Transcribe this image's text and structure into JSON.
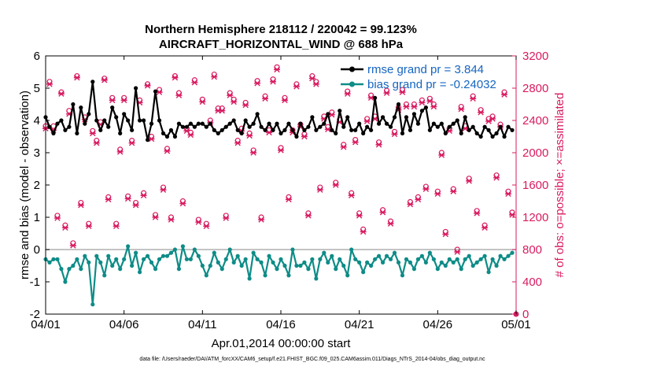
{
  "chart_data": {
    "type": "line",
    "title": "Northern Hemisphere 218112 / 220042 = 99.123%",
    "subtitle": "AIRCRAFT_HORIZONTAL_WIND @ 688 hPa",
    "xlabel": "Apr.01,2014 00:00:00 start",
    "ylabel": "rmse and bias (model - observation)",
    "y2label": "# of obs: o=possible; ×=assimilated",
    "xlim": [
      0,
      30
    ],
    "ylim": [
      -2,
      6
    ],
    "y2lim": [
      0,
      3200
    ],
    "x_ticks": [
      0,
      5,
      10,
      15,
      20,
      25,
      30
    ],
    "x_tick_labels": [
      "04/01",
      "04/06",
      "04/11",
      "04/16",
      "04/21",
      "04/26",
      "05/01"
    ],
    "y_ticks": [
      "-2",
      "-1",
      "0",
      "1",
      "2",
      "3",
      "4",
      "5",
      "6"
    ],
    "y2_ticks": [
      "0",
      "400",
      "800",
      "1200",
      "1600",
      "2000",
      "2400",
      "2800",
      "3200"
    ],
    "legend_position": "top-right",
    "legend": [
      "rmse grand pr = 3.844",
      "bias grand pr = -0.24032"
    ],
    "x": [
      0.0,
      0.25,
      0.5,
      0.75,
      1.0,
      1.25,
      1.5,
      1.75,
      2.0,
      2.25,
      2.5,
      2.75,
      3.0,
      3.25,
      3.5,
      3.75,
      4.0,
      4.25,
      4.5,
      4.75,
      5.0,
      5.25,
      5.5,
      5.75,
      6.0,
      6.25,
      6.5,
      6.75,
      7.0,
      7.25,
      7.5,
      7.75,
      8.0,
      8.25,
      8.5,
      8.75,
      9.0,
      9.25,
      9.5,
      9.75,
      10.0,
      10.25,
      10.5,
      10.75,
      11.0,
      11.25,
      11.5,
      11.75,
      12.0,
      12.25,
      12.5,
      12.75,
      13.0,
      13.25,
      13.5,
      13.75,
      14.0,
      14.25,
      14.5,
      14.75,
      15.0,
      15.25,
      15.5,
      15.75,
      16.0,
      16.25,
      16.5,
      16.75,
      17.0,
      17.25,
      17.5,
      17.75,
      18.0,
      18.25,
      18.5,
      18.75,
      19.0,
      19.25,
      19.5,
      19.75,
      20.0,
      20.25,
      20.5,
      20.75,
      21.0,
      21.25,
      21.5,
      21.75,
      22.0,
      22.25,
      22.5,
      22.75,
      23.0,
      23.25,
      23.5,
      23.75,
      24.0,
      24.25,
      24.5,
      24.75,
      25.0,
      25.25,
      25.5,
      25.75,
      26.0,
      26.25,
      26.5,
      26.75,
      27.0,
      27.25,
      27.5,
      27.75,
      28.0,
      28.25,
      28.5,
      28.75,
      29.0,
      29.25,
      29.5,
      29.75
    ],
    "series": [
      {
        "name": "rmse",
        "color": "#000000",
        "values": [
          4.1,
          3.8,
          3.6,
          3.9,
          4.0,
          3.7,
          3.8,
          4.5,
          3.6,
          4.4,
          3.9,
          4.2,
          5.2,
          4.0,
          3.7,
          4.0,
          3.8,
          4.4,
          4.1,
          3.6,
          4.2,
          4.0,
          3.7,
          5.0,
          4.0,
          4.0,
          3.4,
          3.9,
          4.9,
          4.0,
          3.6,
          3.5,
          3.7,
          3.5,
          3.9,
          3.8,
          3.8,
          3.9,
          3.8,
          3.9,
          3.9,
          3.8,
          3.9,
          3.7,
          3.6,
          3.7,
          3.8,
          3.9,
          4.0,
          3.7,
          3.6,
          4.0,
          3.8,
          3.9,
          4.2,
          3.8,
          3.7,
          3.9,
          3.7,
          3.9,
          3.6,
          3.7,
          3.9,
          3.7,
          3.5,
          3.9,
          3.7,
          3.8,
          4.1,
          3.7,
          3.8,
          3.9,
          4.2,
          3.7,
          3.6,
          4.3,
          3.8,
          4.1,
          3.7,
          3.7,
          3.9,
          3.6,
          3.8,
          3.7,
          4.7,
          3.9,
          4.1,
          3.9,
          3.8,
          4.1,
          4.5,
          3.6,
          4.1,
          3.7,
          4.2,
          3.9,
          4.3,
          4.4,
          3.7,
          3.9,
          3.8,
          3.9,
          3.6,
          3.8,
          3.9,
          4.0,
          3.6,
          4.1,
          3.7,
          3.8,
          3.6,
          3.5,
          3.8,
          3.7,
          3.5,
          3.6,
          3.8,
          3.5,
          3.8,
          3.7
        ],
        "legend": "rmse grand pr = 3.844"
      },
      {
        "name": "bias",
        "color": "#0e8c87",
        "values": [
          -0.3,
          -0.4,
          -0.3,
          -0.3,
          -0.6,
          -1.0,
          -0.6,
          -0.5,
          -0.3,
          -0.6,
          -0.2,
          -0.4,
          -1.7,
          -0.2,
          -0.4,
          -0.8,
          -0.2,
          -0.5,
          -0.3,
          -0.6,
          -0.3,
          0.1,
          -0.5,
          -0.1,
          -0.7,
          -0.3,
          -0.2,
          -0.4,
          -0.6,
          -0.3,
          -0.2,
          -0.2,
          -0.1,
          0.0,
          -0.6,
          0.1,
          -0.3,
          -0.3,
          0.0,
          -0.2,
          -0.5,
          -0.8,
          -0.5,
          -0.1,
          -0.4,
          -0.6,
          -0.3,
          0.0,
          -0.4,
          -0.2,
          -0.5,
          -0.3,
          -0.9,
          -0.1,
          -0.3,
          -0.4,
          -0.8,
          -0.2,
          -0.4,
          -0.6,
          -0.3,
          -0.5,
          -0.8,
          0.0,
          -0.5,
          -0.5,
          -0.4,
          -0.6,
          -0.3,
          -0.9,
          -0.3,
          -0.1,
          -0.4,
          -0.2,
          -0.6,
          -0.3,
          -0.5,
          -0.8,
          0.0,
          -0.3,
          -0.4,
          -0.7,
          -0.4,
          -0.5,
          -0.3,
          -0.2,
          -0.4,
          -0.2,
          -0.3,
          -0.1,
          -0.4,
          -0.8,
          -0.3,
          -0.4,
          -0.6,
          -0.3,
          -0.2,
          -0.4,
          -0.1,
          -0.3,
          -0.6,
          -0.4,
          -0.5,
          -0.3,
          -0.4,
          -0.3,
          -0.6,
          -0.3,
          -0.2,
          -0.5,
          -0.4,
          -0.3,
          -0.2,
          -0.7,
          -0.3,
          -0.5,
          -0.2,
          -0.3,
          -0.2,
          -0.1
        ],
        "legend": "bias grand pr = -0.24032"
      },
      {
        "name": "obs possible",
        "axis": "right",
        "marker": "o",
        "color": "#d81b60",
        "values": [
          2330,
          2880,
          2330,
          1220,
          2750,
          1100,
          2520,
          880,
          2950,
          1380,
          2440,
          1120,
          2270,
          2150,
          2380,
          2920,
          1450,
          2680,
          1120,
          2040,
          2680,
          1460,
          2150,
          1380,
          2650,
          1500,
          2850,
          2200,
          1230,
          2780,
          1570,
          2050,
          1200,
          2950,
          2740,
          1400,
          2300,
          2250,
          2900,
          1170,
          2660,
          1120,
          2400,
          2970,
          2550,
          2550,
          1220,
          2740,
          2660,
          2150,
          2300,
          2620,
          2240,
          2030,
          2890,
          1200,
          2700,
          2280,
          2910,
          3060,
          2060,
          2680,
          1450,
          2280,
          2850,
          2350,
          2230,
          1250,
          2950,
          2880,
          1570,
          2450,
          2320,
          2500,
          1630,
          2410,
          2100,
          2760,
          1500,
          2160,
          1250,
          1050,
          2420,
          2710,
          2450,
          2130,
          1290,
          2770,
          1150,
          2260,
          2560,
          2780,
          2600,
          1390,
          2600,
          1450,
          2650,
          1580,
          2670,
          2600,
          1520,
          2000,
          1020,
          2300,
          1550,
          800,
          2570,
          2330,
          1680,
          2700,
          1280,
          2530,
          1100,
          2420,
          2450,
          1720,
          2350,
          2750,
          1520,
          1260
        ],
        "legend": ""
      },
      {
        "name": "obs assimilated",
        "axis": "right",
        "marker": "x",
        "color": "#d81b60",
        "values": [
          2300,
          2850,
          2280,
          1190,
          2730,
          1070,
          2480,
          850,
          2930,
          1350,
          2410,
          1090,
          2240,
          2120,
          2350,
          2900,
          1420,
          2650,
          1090,
          2010,
          2650,
          1430,
          2120,
          1350,
          2620,
          1470,
          2830,
          2170,
          1200,
          2750,
          1540,
          2020,
          1170,
          2930,
          2710,
          1370,
          2270,
          2220,
          2870,
          1140,
          2630,
          1090,
          2370,
          2940,
          2520,
          2520,
          1190,
          2710,
          2630,
          2120,
          2270,
          2590,
          2210,
          2000,
          2860,
          1170,
          2670,
          2250,
          2880,
          3030,
          2030,
          2650,
          1420,
          2250,
          2820,
          2320,
          2200,
          1220,
          2920,
          2850,
          1540,
          2420,
          2290,
          2470,
          1600,
          2380,
          2070,
          2730,
          1470,
          2130,
          1220,
          1020,
          2390,
          2680,
          2420,
          2100,
          1260,
          2740,
          1120,
          2230,
          2530,
          2750,
          2570,
          1360,
          2570,
          1420,
          2620,
          1550,
          2640,
          2570,
          1490,
          1970,
          990,
          2270,
          1520,
          770,
          2540,
          2300,
          1650,
          2670,
          1250,
          2500,
          1070,
          2390,
          2420,
          1690,
          2320,
          2720,
          1490,
          1230
        ],
        "legend": ""
      }
    ]
  },
  "footnote": "data file: /Users/raeder/DAI/ATM_forcXX/CAM6_setup/f.e21.FHIST_BGC.f09_025.CAM6assim.011/Diags_NTrS_2014-04/obs_diag_output.nc"
}
